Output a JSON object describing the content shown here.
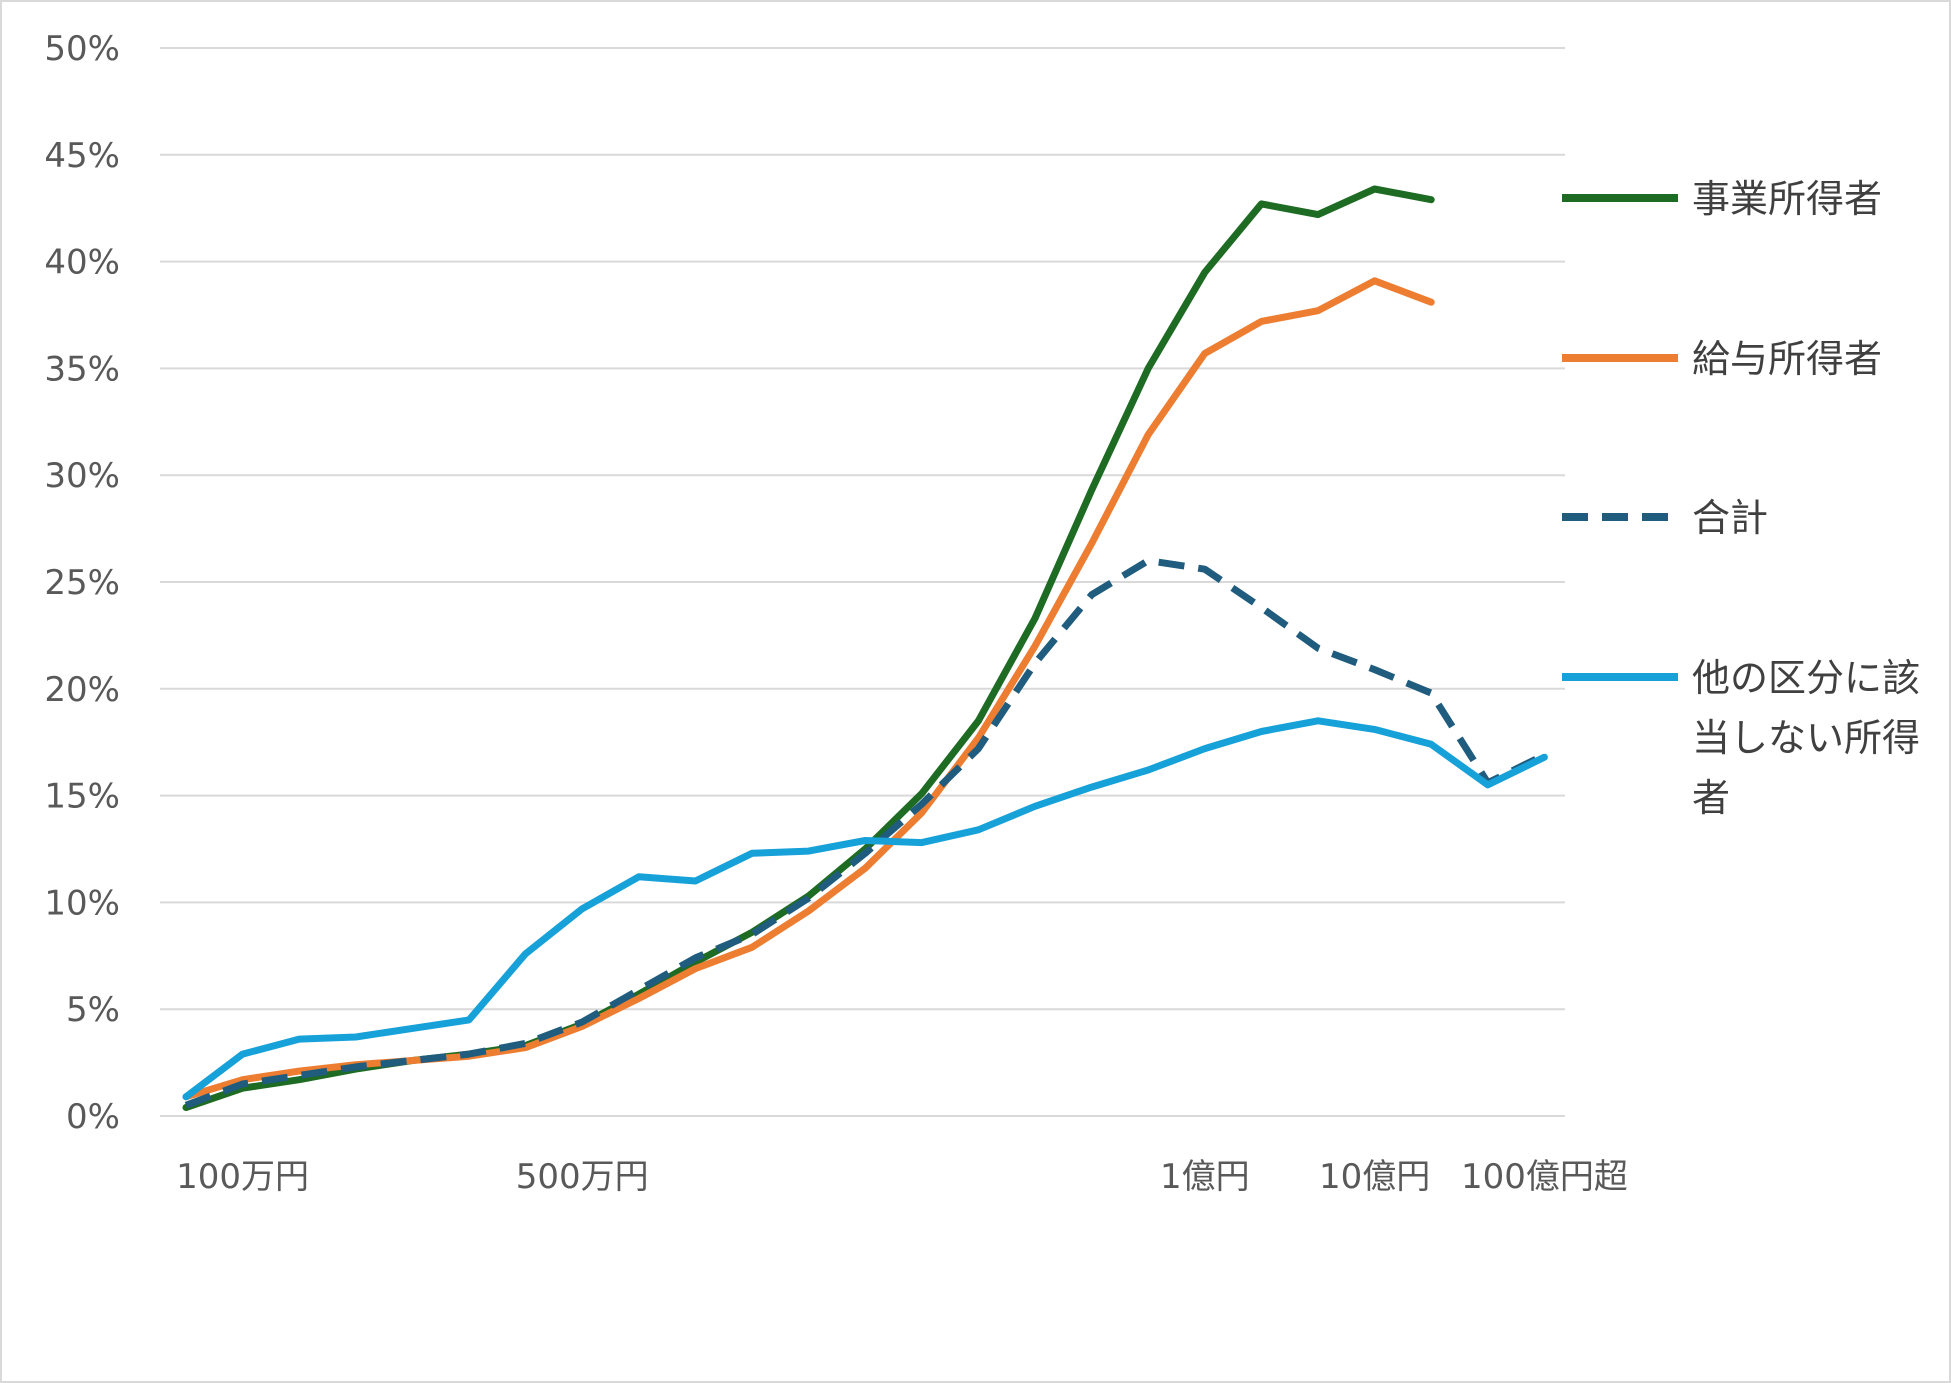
{
  "chart_data": {
    "type": "line",
    "title": "",
    "xlabel": "",
    "ylabel": "",
    "ylim": [
      0,
      50
    ],
    "y_ticks": [
      "0%",
      "5%",
      "10%",
      "15%",
      "20%",
      "25%",
      "30%",
      "35%",
      "40%",
      "45%",
      "50%"
    ],
    "grid": "horizontal",
    "legend_position": "right",
    "x_tick_labels": [
      {
        "index": 1,
        "label": "100万円"
      },
      {
        "index": 7,
        "label": "500万円"
      },
      {
        "index": 18,
        "label": "1億円"
      },
      {
        "index": 21,
        "label": "10億円"
      },
      {
        "index": 24,
        "label": "100億円超"
      }
    ],
    "series": [
      {
        "name": "事業所得者",
        "color": "#1e6b23",
        "style": "solid",
        "values": [
          0.4,
          1.3,
          1.7,
          2.2,
          2.6,
          2.9,
          3.3,
          4.3,
          5.7,
          7.2,
          8.6,
          10.3,
          12.5,
          15.1,
          18.5,
          23.3,
          29.3,
          35.0,
          39.5,
          42.7,
          42.2,
          43.4,
          42.9,
          null,
          null
        ]
      },
      {
        "name": "給与所得者",
        "color": "#ed7d31",
        "style": "solid",
        "values": [
          0.9,
          1.7,
          2.1,
          2.4,
          2.6,
          2.8,
          3.2,
          4.2,
          5.5,
          6.9,
          7.9,
          9.6,
          11.6,
          14.2,
          17.7,
          22.0,
          26.8,
          31.9,
          35.7,
          37.2,
          37.7,
          39.1,
          38.1,
          null,
          null
        ]
      },
      {
        "name": "合計",
        "color": "#1f5c7e",
        "style": "dashed",
        "values": [
          0.5,
          1.5,
          1.9,
          2.3,
          2.6,
          2.9,
          3.4,
          4.4,
          5.9,
          7.4,
          8.5,
          10.2,
          12.3,
          14.6,
          17.2,
          21.2,
          24.4,
          26.0,
          25.6,
          23.8,
          21.9,
          20.9,
          19.8,
          15.6,
          16.9
        ]
      },
      {
        "name": "他の区分に該当しない所得者",
        "legend_lines": [
          "他の区分に該",
          "当しない所得",
          "者"
        ],
        "color": "#17a1d9",
        "style": "solid",
        "values": [
          0.9,
          2.9,
          3.6,
          3.7,
          4.1,
          4.5,
          7.6,
          9.7,
          11.2,
          11.0,
          12.3,
          12.4,
          12.9,
          12.8,
          13.4,
          14.5,
          15.4,
          16.2,
          17.2,
          18.0,
          18.5,
          18.1,
          17.4,
          15.5,
          16.8
        ]
      }
    ]
  }
}
